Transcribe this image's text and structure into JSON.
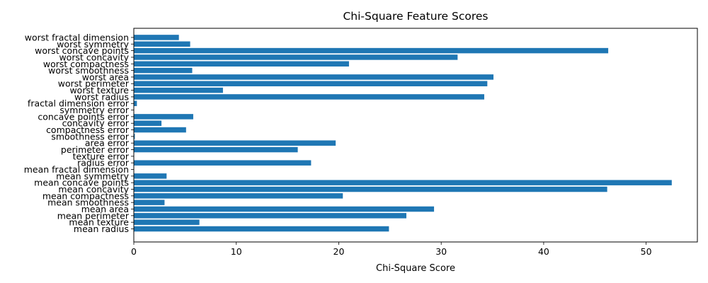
{
  "chart_data": {
    "type": "bar",
    "orientation": "horizontal",
    "title": "Chi-Square Feature Scores",
    "xlabel": "Chi-Square Score",
    "ylabel": "",
    "xlim": [
      0,
      55
    ],
    "xticks": [
      0,
      10,
      20,
      30,
      40,
      50
    ],
    "grid": false,
    "bar_color": "#1f77b4",
    "categories": [
      "mean radius",
      "mean texture",
      "mean perimeter",
      "mean area",
      "mean smoothness",
      "mean compactness",
      "mean concavity",
      "mean concave points",
      "mean symmetry",
      "mean fractal dimension",
      "radius error",
      "texture error",
      "perimeter error",
      "area error",
      "smoothness error",
      "compactness error",
      "concavity error",
      "concave points error",
      "symmetry error",
      "fractal dimension error",
      "worst radius",
      "worst texture",
      "worst perimeter",
      "worst area",
      "worst smoothness",
      "worst compactness",
      "worst concavity",
      "worst concave points",
      "worst symmetry",
      "worst fractal dimension"
    ],
    "values": [
      24.9,
      6.4,
      26.6,
      29.3,
      3.0,
      20.4,
      46.2,
      52.5,
      3.2,
      0.0,
      17.3,
      0.0,
      16.0,
      19.7,
      0.1,
      5.1,
      2.7,
      5.8,
      0.0,
      0.3,
      34.2,
      8.7,
      34.5,
      35.1,
      5.7,
      21.0,
      31.6,
      46.3,
      5.5,
      4.4
    ]
  }
}
